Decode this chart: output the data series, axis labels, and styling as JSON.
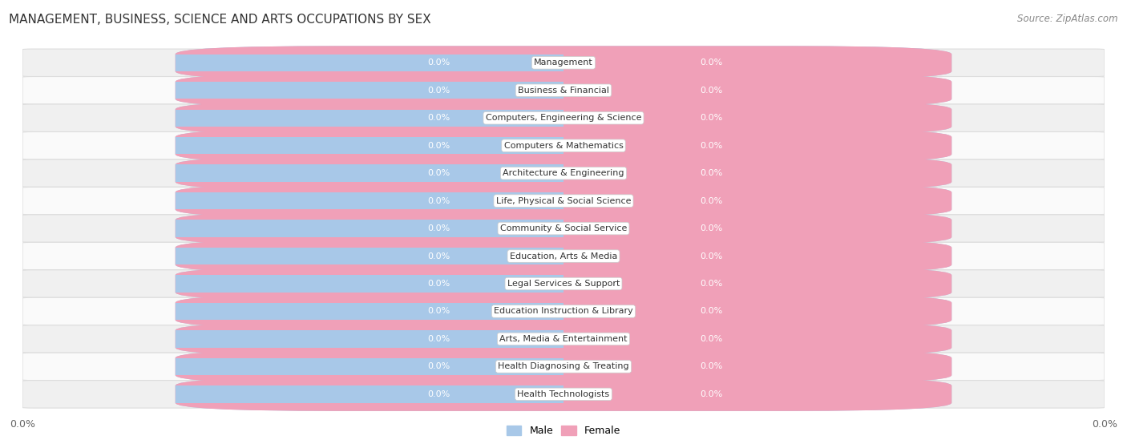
{
  "title": "MANAGEMENT, BUSINESS, SCIENCE AND ARTS OCCUPATIONS BY SEX",
  "source": "Source: ZipAtlas.com",
  "categories": [
    "Management",
    "Business & Financial",
    "Computers, Engineering & Science",
    "Computers & Mathematics",
    "Architecture & Engineering",
    "Life, Physical & Social Science",
    "Community & Social Service",
    "Education, Arts & Media",
    "Legal Services & Support",
    "Education Instruction & Library",
    "Arts, Media & Entertainment",
    "Health Diagnosing & Treating",
    "Health Technologists"
  ],
  "male_values": [
    0.0,
    0.0,
    0.0,
    0.0,
    0.0,
    0.0,
    0.0,
    0.0,
    0.0,
    0.0,
    0.0,
    0.0,
    0.0
  ],
  "female_values": [
    0.0,
    0.0,
    0.0,
    0.0,
    0.0,
    0.0,
    0.0,
    0.0,
    0.0,
    0.0,
    0.0,
    0.0,
    0.0
  ],
  "male_color": "#a8c8e8",
  "female_color": "#f0a0b8",
  "title_fontsize": 11,
  "source_fontsize": 8.5,
  "label_fontsize": 8,
  "value_fontsize": 8,
  "tick_fontsize": 9,
  "background_color": "#ffffff",
  "row_bg_even": "#f0f0f0",
  "row_bg_odd": "#fafafa",
  "row_edge_color": "#dddddd"
}
